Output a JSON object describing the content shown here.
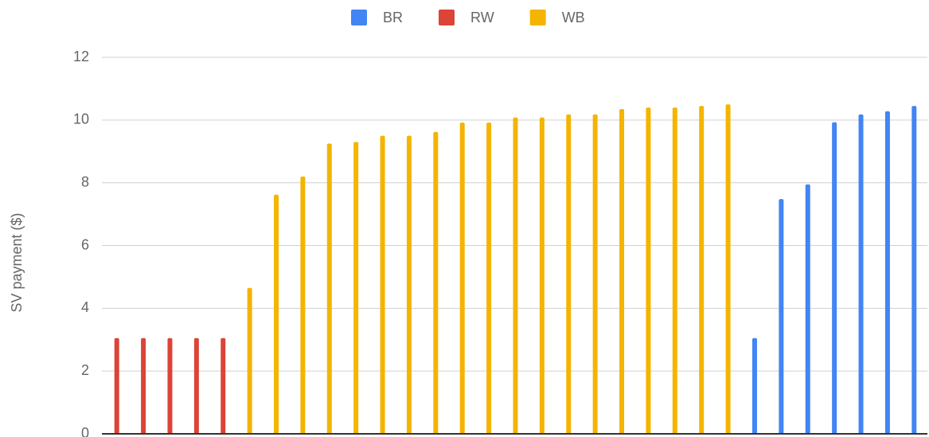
{
  "chart_data": {
    "type": "bar",
    "y_label": "SV payment ($)",
    "categories": [
      null,
      null,
      null,
      null,
      null,
      null,
      null,
      null,
      null,
      null,
      null,
      null,
      null,
      null,
      null,
      null,
      null,
      null,
      null,
      null,
      null,
      null,
      null,
      null,
      null,
      null,
      null,
      null,
      null,
      null,
      null
    ],
    "series": [
      {
        "name": "BR",
        "color": "#4285f4",
        "values": [
          null,
          null,
          null,
          null,
          null,
          null,
          null,
          null,
          null,
          null,
          null,
          null,
          null,
          null,
          null,
          null,
          null,
          null,
          null,
          null,
          null,
          null,
          null,
          null,
          3.05,
          7.48,
          7.95,
          9.93,
          10.18,
          10.28,
          10.45
        ]
      },
      {
        "name": "RW",
        "color": "#db4437",
        "values": [
          3.05,
          3.05,
          3.05,
          3.05,
          3.05,
          null,
          null,
          null,
          null,
          null,
          null,
          null,
          null,
          null,
          null,
          null,
          null,
          null,
          null,
          null,
          null,
          null,
          null,
          null,
          null,
          null,
          null,
          null,
          null,
          null,
          null
        ]
      },
      {
        "name": "WB",
        "color": "#f4b400",
        "values": [
          null,
          null,
          null,
          null,
          null,
          4.65,
          7.62,
          8.2,
          9.25,
          9.3,
          9.5,
          9.5,
          9.62,
          9.92,
          9.92,
          10.08,
          10.08,
          10.18,
          10.18,
          10.35,
          10.4,
          10.4,
          10.45,
          10.5,
          null,
          null,
          null,
          null,
          null,
          null,
          null
        ]
      }
    ],
    "ylim": [
      0,
      12
    ],
    "yticks": [
      0,
      2,
      4,
      6,
      8,
      10,
      12
    ],
    "grid": true,
    "legend": "top"
  }
}
